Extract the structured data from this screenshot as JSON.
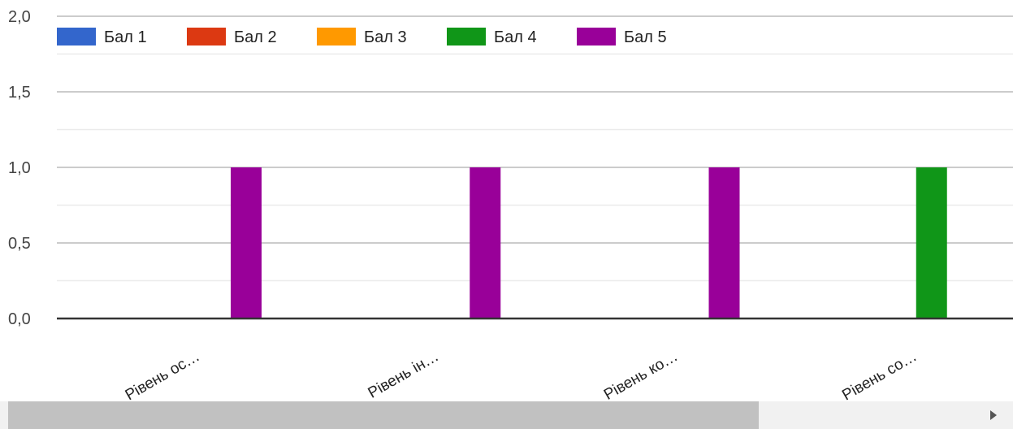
{
  "chart_data": {
    "type": "bar",
    "categories": [
      "Рівень ос…",
      "Рівень ін…",
      "Рівень ко…",
      "Рівень со…"
    ],
    "series": [
      {
        "name": "Бал 1",
        "color": "#3366cc",
        "values": [
          0,
          0,
          0,
          0
        ]
      },
      {
        "name": "Бал 2",
        "color": "#dc3912",
        "values": [
          0,
          0,
          0,
          0
        ]
      },
      {
        "name": "Бал 3",
        "color": "#ff9900",
        "values": [
          0,
          0,
          0,
          0
        ]
      },
      {
        "name": "Бал 4",
        "color": "#109618",
        "values": [
          0,
          0,
          0,
          1
        ]
      },
      {
        "name": "Бал 5",
        "color": "#990099",
        "values": [
          1,
          1,
          1,
          0
        ]
      }
    ],
    "y_ticks": [
      "2,0",
      "1,5",
      "1,0",
      "0,5",
      "0,0"
    ],
    "ylim": [
      0,
      2
    ],
    "grid": true,
    "legend_position": "top"
  },
  "scrollbar": {
    "arrow_icon": "triangle-right-icon"
  }
}
